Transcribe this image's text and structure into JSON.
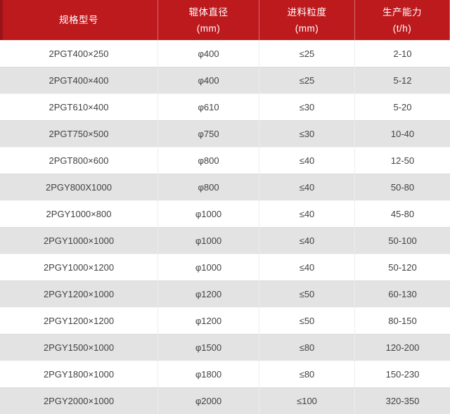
{
  "table": {
    "header": {
      "columns": [
        {
          "label": "规格型号",
          "sub": ""
        },
        {
          "label": "辊体直径",
          "sub": "(mm)"
        },
        {
          "label": "进料粒度",
          "sub": "(mm)"
        },
        {
          "label": "生产能力",
          "sub": "(t/h)"
        }
      ]
    },
    "rows": [
      {
        "model": "2PGT400×250",
        "diameter": "φ400",
        "feed_size": "≤25",
        "capacity": "2-10"
      },
      {
        "model": "2PGT400×400",
        "diameter": "φ400",
        "feed_size": "≤25",
        "capacity": "5-12"
      },
      {
        "model": "2PGT610×400",
        "diameter": "φ610",
        "feed_size": "≤30",
        "capacity": "5-20"
      },
      {
        "model": "2PGT750×500",
        "diameter": "φ750",
        "feed_size": "≤30",
        "capacity": "10-40"
      },
      {
        "model": "2PGT800×600",
        "diameter": "φ800",
        "feed_size": "≤40",
        "capacity": "12-50"
      },
      {
        "model": "2PGY800X1000",
        "diameter": "φ800",
        "feed_size": "≤40",
        "capacity": "50-80"
      },
      {
        "model": "2PGY1000×800",
        "diameter": "φ1000",
        "feed_size": "≤40",
        "capacity": "45-80"
      },
      {
        "model": "2PGY1000×1000",
        "diameter": "φ1000",
        "feed_size": "≤40",
        "capacity": "50-100"
      },
      {
        "model": "2PGY1000×1200",
        "diameter": "φ1000",
        "feed_size": "≤40",
        "capacity": "50-120"
      },
      {
        "model": "2PGY1200×1000",
        "diameter": "φ1200",
        "feed_size": "≤50",
        "capacity": "60-130"
      },
      {
        "model": "2PGY1200×1200",
        "diameter": "φ1200",
        "feed_size": "≤50",
        "capacity": "80-150"
      },
      {
        "model": "2PGY1500×1000",
        "diameter": "φ1500",
        "feed_size": "≤80",
        "capacity": "120-200"
      },
      {
        "model": "2PGY1800×1000",
        "diameter": "φ1800",
        "feed_size": "≤80",
        "capacity": "150-230"
      },
      {
        "model": "2PGY2000×1000",
        "diameter": "φ2000",
        "feed_size": "≤100",
        "capacity": "320-350"
      }
    ]
  },
  "colors": {
    "header_bg": "#bd1a1e",
    "header_edge": "#9b1316",
    "header_text": "#ffffff",
    "row_bg": "#ffffff",
    "row_alt_bg": "#e3e3e3",
    "body_text": "#424242",
    "divider": "#ededed"
  }
}
